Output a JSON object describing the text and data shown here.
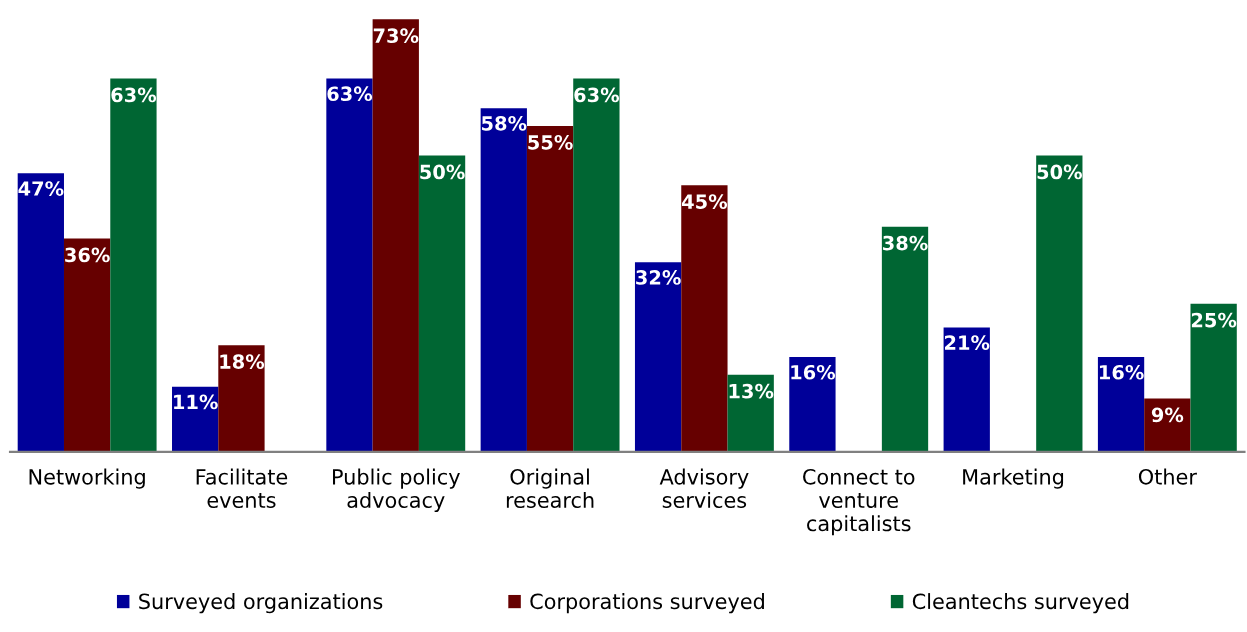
{
  "chart_data": {
    "type": "bar",
    "categories": [
      "Networking",
      "Facilitate\nevents",
      "Public policy\nadvocacy",
      "Original\nresearch",
      "Advisory\nservices",
      "Connect to\nventure\ncapitalists",
      "Marketing",
      "Other"
    ],
    "series": [
      {
        "name": "Surveyed organizations",
        "color": "#000099",
        "values": [
          47,
          11,
          63,
          58,
          32,
          16,
          21,
          16
        ],
        "value_labels": [
          "47%",
          "11%",
          "63%",
          "58%",
          "32%",
          "16%",
          "21%",
          "16%"
        ]
      },
      {
        "name": "Corporations surveyed",
        "color": "#660000",
        "values": [
          36,
          18,
          73,
          55,
          45,
          null,
          null,
          9
        ],
        "value_labels": [
          "36%",
          "18%",
          "73%",
          "55%",
          "45%",
          null,
          null,
          "9%"
        ]
      },
      {
        "name": "Cleantechs surveyed",
        "color": "#006633",
        "values": [
          63,
          null,
          50,
          63,
          13,
          38,
          50,
          25
        ],
        "value_labels": [
          "63%",
          null,
          "50%",
          "63%",
          "13%",
          "38%",
          "50%",
          "25%"
        ]
      }
    ],
    "legend": "bottom",
    "grid": false
  }
}
